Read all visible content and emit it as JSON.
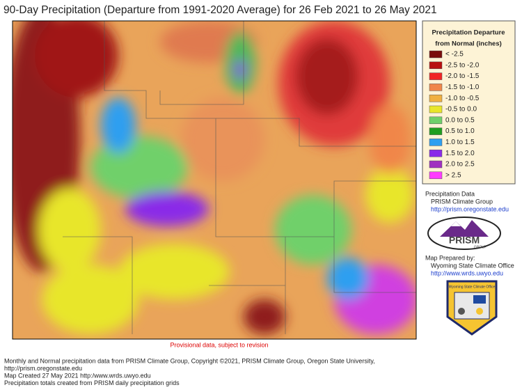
{
  "header": {
    "title": "90-Day Precipitation (Departure from 1991-2020 Average) for 26 Feb 2021 to 26 May 2021"
  },
  "map": {
    "note": "Provisional data, subject to revision"
  },
  "legend": {
    "title": [
      "Precipitation Departure",
      "from Normal (inches)"
    ],
    "items": [
      {
        "label": "< -2.5",
        "color": "#7a0d0d"
      },
      {
        "label": "-2.5 to -2.0",
        "color": "#b80f0f"
      },
      {
        "label": "-2.0 to -1.5",
        "color": "#f02424"
      },
      {
        "label": "-1.5 to -1.0",
        "color": "#f0864a"
      },
      {
        "label": "-1.0 to -0.5",
        "color": "#f0b040"
      },
      {
        "label": "-0.5 to 0.0",
        "color": "#e8e62a"
      },
      {
        "label": "0.0 to 0.5",
        "color": "#6fd06a"
      },
      {
        "label": "0.5 to 1.0",
        "color": "#1f9e1f"
      },
      {
        "label": "1.0 to 1.5",
        "color": "#2e9ff0"
      },
      {
        "label": "1.5 to 2.0",
        "color": "#8a2be8"
      },
      {
        "label": "2.0 to 2.5",
        "color": "#a030c0"
      },
      {
        "label": "> 2.5",
        "color": "#ff3cff"
      }
    ]
  },
  "credits": {
    "data_title": "Precipitation Data",
    "data_source": "PRISM Climate Group",
    "data_url": "http://prism.oregonstate.edu",
    "logo_text": "PRISM",
    "logo_sub": "GROUP",
    "prepared_title": "Map Prepared by:",
    "prepared_by": "Wyoming State Climate Office",
    "prepared_url": "http://www.wrds.uwyo.edu",
    "badge_text": "Wyoming State Climate Office"
  },
  "footer": {
    "lines": [
      "Monthly and Normal precipitation data from PRISM Climate Group, Copyright ©2021, PRISM Climate Group, Oregon State University,",
      "http://prism.oregonstate.edu",
      "Map Created 27 May 2021 http:/www.wrds.uwyo.edu",
      "Precipitation totals created from PRISM daily precipitation grids"
    ]
  }
}
